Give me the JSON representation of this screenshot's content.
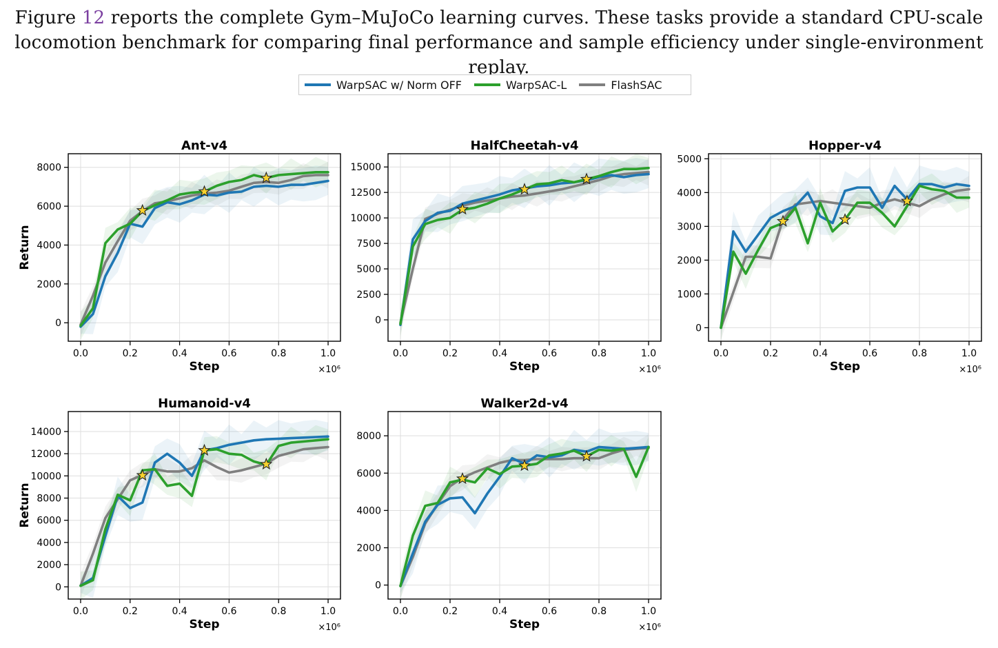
{
  "caption": {
    "line1_pre": "Figure ",
    "line1_ref": "12",
    "line1_post": " reports the complete Gym–MuJoCo learning curves. These tasks provide a standard CPU-scale",
    "line2": "locomotion benchmark for comparing final performance and sample efficiency under single-environment replay."
  },
  "legend": [
    {
      "name": "WarpSAC w/ Norm OFF",
      "color": "#1f77b4"
    },
    {
      "name": "WarpSAC-L",
      "color": "#2ca02c"
    },
    {
      "name": "FlashSAC",
      "color": "#7f7f7f"
    }
  ],
  "chart_data": [
    {
      "type": "line",
      "title": "Ant-v4",
      "xlabel": "Step",
      "ylabel": "Return",
      "x_multiplier": "×10⁶",
      "xlim": [
        -0.05,
        1.05
      ],
      "ylim": [
        -950,
        8700
      ],
      "xticks": [
        "0.0",
        "0.2",
        "0.4",
        "0.6",
        "0.8",
        "1.0"
      ],
      "yticks": [
        "0",
        "2000",
        "4000",
        "6000",
        "8000"
      ],
      "grid": true,
      "x": [
        0,
        0.05,
        0.1,
        0.15,
        0.2,
        0.25,
        0.3,
        0.35,
        0.4,
        0.45,
        0.5,
        0.55,
        0.6,
        0.65,
        0.7,
        0.75,
        0.8,
        0.85,
        0.9,
        0.95,
        1.0
      ],
      "series": [
        {
          "name": "WarpSAC w/ Norm OFF",
          "color": "#1f77b4",
          "values": [
            -200,
            450,
            2400,
            3600,
            5100,
            4950,
            5900,
            6200,
            6100,
            6300,
            6600,
            6550,
            6700,
            6750,
            7000,
            7050,
            7000,
            7100,
            7100,
            7200,
            7300
          ]
        },
        {
          "name": "WarpSAC-L",
          "color": "#2ca02c",
          "values": [
            -150,
            750,
            4100,
            4800,
            5100,
            5750,
            6050,
            6300,
            6600,
            6700,
            6750,
            7050,
            7250,
            7350,
            7600,
            7450,
            7600,
            7650,
            7700,
            7750,
            7750
          ]
        },
        {
          "name": "FlashSAC",
          "color": "#7f7f7f",
          "values": [
            -100,
            1400,
            3100,
            4200,
            5250,
            5750,
            6150,
            6250,
            6400,
            6550,
            6650,
            6700,
            6800,
            7000,
            7200,
            7250,
            7200,
            7350,
            7550,
            7600,
            7600
          ]
        }
      ],
      "stars": [
        {
          "x": 0.25,
          "y": 5780
        },
        {
          "x": 0.5,
          "y": 6750
        },
        {
          "x": 0.75,
          "y": 7450
        }
      ]
    },
    {
      "type": "line",
      "title": "HalfCheetah-v4",
      "xlabel": "Step",
      "ylabel": "",
      "x_multiplier": "×10⁶",
      "xlim": [
        -0.05,
        1.05
      ],
      "ylim": [
        -2100,
        16300
      ],
      "xticks": [
        "0.0",
        "0.2",
        "0.4",
        "0.6",
        "0.8",
        "1.0"
      ],
      "yticks": [
        "0",
        "2500",
        "5000",
        "7500",
        "10000",
        "12500",
        "15000"
      ],
      "grid": true,
      "x": [
        0,
        0.05,
        0.1,
        0.15,
        0.2,
        0.25,
        0.3,
        0.35,
        0.4,
        0.45,
        0.5,
        0.55,
        0.6,
        0.65,
        0.7,
        0.75,
        0.8,
        0.85,
        0.9,
        0.95,
        1.0
      ],
      "series": [
        {
          "name": "WarpSAC w/ Norm OFF",
          "color": "#1f77b4",
          "values": [
            -500,
            7900,
            9700,
            10500,
            10700,
            11400,
            11700,
            12000,
            12300,
            12700,
            12900,
            13100,
            13200,
            13400,
            13500,
            13700,
            14000,
            14200,
            14000,
            14200,
            14300
          ]
        },
        {
          "name": "WarpSAC-L",
          "color": "#2ca02c",
          "values": [
            -400,
            7200,
            9400,
            9800,
            10000,
            10800,
            11000,
            11400,
            11900,
            12300,
            12800,
            13300,
            13400,
            13700,
            13500,
            13800,
            14100,
            14500,
            14800,
            14800,
            14900
          ]
        },
        {
          "name": "FlashSAC",
          "color": "#7f7f7f",
          "values": [
            -300,
            5000,
            9900,
            10400,
            10800,
            11200,
            11500,
            11700,
            11900,
            12100,
            12200,
            12400,
            12600,
            12800,
            13100,
            13400,
            13700,
            14100,
            14300,
            14400,
            14500
          ]
        }
      ],
      "stars": [
        {
          "x": 0.25,
          "y": 10850
        },
        {
          "x": 0.5,
          "y": 12800
        },
        {
          "x": 0.75,
          "y": 13800
        }
      ]
    },
    {
      "type": "line",
      "title": "Hopper-v4",
      "xlabel": "Step",
      "ylabel": "",
      "x_multiplier": "×10⁶",
      "xlim": [
        -0.05,
        1.05
      ],
      "ylim": [
        -400,
        5150
      ],
      "xticks": [
        "0.0",
        "0.2",
        "0.4",
        "0.6",
        "0.8",
        "1.0"
      ],
      "yticks": [
        "0",
        "1000",
        "2000",
        "3000",
        "4000",
        "5000"
      ],
      "grid": true,
      "x": [
        0,
        0.05,
        0.1,
        0.15,
        0.2,
        0.25,
        0.3,
        0.35,
        0.4,
        0.45,
        0.5,
        0.55,
        0.6,
        0.65,
        0.7,
        0.75,
        0.8,
        0.85,
        0.9,
        0.95,
        1.0
      ],
      "series": [
        {
          "name": "WarpSAC w/ Norm OFF",
          "color": "#1f77b4",
          "values": [
            0,
            2850,
            2250,
            2750,
            3250,
            3450,
            3600,
            4000,
            3300,
            3100,
            4050,
            4150,
            4150,
            3550,
            4200,
            3800,
            4250,
            4250,
            4150,
            4250,
            4200
          ]
        },
        {
          "name": "WarpSAC-L",
          "color": "#2ca02c",
          "values": [
            0,
            2250,
            1600,
            2300,
            2950,
            3100,
            3550,
            2500,
            3700,
            2850,
            3200,
            3700,
            3700,
            3400,
            3000,
            3600,
            4200,
            4100,
            4050,
            3850,
            3850
          ]
        },
        {
          "name": "FlashSAC",
          "color": "#7f7f7f",
          "values": [
            0,
            1050,
            2100,
            2100,
            2050,
            3200,
            3650,
            3700,
            3750,
            3700,
            3650,
            3600,
            3550,
            3700,
            3800,
            3700,
            3600,
            3800,
            3950,
            4050,
            4100
          ]
        }
      ],
      "stars": [
        {
          "x": 0.25,
          "y": 3150
        },
        {
          "x": 0.5,
          "y": 3200
        },
        {
          "x": 0.75,
          "y": 3750
        }
      ]
    },
    {
      "type": "line",
      "title": "Humanoid-v4",
      "xlabel": "Step",
      "ylabel": "Return",
      "x_multiplier": "×10⁶",
      "xlim": [
        -0.05,
        1.05
      ],
      "ylim": [
        -1100,
        15800
      ],
      "xticks": [
        "0.0",
        "0.2",
        "0.4",
        "0.6",
        "0.8",
        "1.0"
      ],
      "yticks": [
        "0",
        "2000",
        "4000",
        "6000",
        "8000",
        "10000",
        "12000",
        "14000"
      ],
      "grid": true,
      "x": [
        0,
        0.05,
        0.1,
        0.15,
        0.2,
        0.25,
        0.3,
        0.35,
        0.4,
        0.45,
        0.5,
        0.55,
        0.6,
        0.65,
        0.7,
        0.75,
        0.8,
        0.85,
        0.9,
        0.95,
        1.0
      ],
      "series": [
        {
          "name": "WarpSAC w/ Norm OFF",
          "color": "#1f77b4",
          "values": [
            100,
            800,
            4600,
            8200,
            7100,
            7600,
            11200,
            12000,
            11200,
            10000,
            12300,
            12500,
            12800,
            13000,
            13200,
            13300,
            13350,
            13400,
            13450,
            13500,
            13550
          ]
        },
        {
          "name": "WarpSAC-L",
          "color": "#2ca02c",
          "values": [
            100,
            600,
            5200,
            8300,
            7800,
            10500,
            10600,
            9100,
            9300,
            8200,
            12300,
            12400,
            12000,
            11900,
            11300,
            11000,
            12700,
            13000,
            13100,
            13200,
            13300
          ]
        },
        {
          "name": "FlashSAC",
          "color": "#7f7f7f",
          "values": [
            100,
            3000,
            6200,
            7900,
            9600,
            10100,
            10600,
            10400,
            10400,
            10700,
            11400,
            10800,
            10300,
            10500,
            10800,
            11100,
            11800,
            12100,
            12400,
            12500,
            12600
          ]
        }
      ],
      "stars": [
        {
          "x": 0.25,
          "y": 10050
        },
        {
          "x": 0.5,
          "y": 12300
        },
        {
          "x": 0.75,
          "y": 11050
        }
      ]
    },
    {
      "type": "line",
      "title": "Walker2d-v4",
      "xlabel": "Step",
      "ylabel": "",
      "x_multiplier": "×10⁶",
      "xlim": [
        -0.05,
        1.05
      ],
      "ylim": [
        -750,
        9300
      ],
      "xticks": [
        "0.0",
        "0.2",
        "0.4",
        "0.6",
        "0.8",
        "1.0"
      ],
      "yticks": [
        "0",
        "2000",
        "4000",
        "6000",
        "8000"
      ],
      "grid": true,
      "x": [
        0,
        0.05,
        0.1,
        0.15,
        0.2,
        0.25,
        0.3,
        0.35,
        0.4,
        0.45,
        0.5,
        0.55,
        0.6,
        0.65,
        0.7,
        0.75,
        0.8,
        0.85,
        0.9,
        0.95,
        1.0
      ],
      "series": [
        {
          "name": "WarpSAC w/ Norm OFF",
          "color": "#1f77b4",
          "values": [
            -50,
            1700,
            3400,
            4300,
            4650,
            4700,
            3850,
            4900,
            5800,
            6800,
            6500,
            6950,
            6850,
            6950,
            7250,
            7150,
            7400,
            7350,
            7300,
            7350,
            7400
          ]
        },
        {
          "name": "WarpSAC-L",
          "color": "#2ca02c",
          "values": [
            -50,
            2650,
            4250,
            4400,
            5500,
            5650,
            5500,
            6250,
            5950,
            6350,
            6400,
            6500,
            6950,
            7050,
            7200,
            6900,
            7250,
            7200,
            7300,
            5800,
            7400
          ]
        },
        {
          "name": "FlashSAC",
          "color": "#7f7f7f",
          "values": [
            -50,
            1500,
            3300,
            4350,
            5300,
            5750,
            6050,
            6300,
            6550,
            6700,
            6700,
            6750,
            6750,
            6750,
            6800,
            6800,
            6800,
            7050,
            7250,
            7300,
            7350
          ]
        }
      ],
      "stars": [
        {
          "x": 0.25,
          "y": 5700
        },
        {
          "x": 0.5,
          "y": 6400
        },
        {
          "x": 0.75,
          "y": 6900
        }
      ]
    }
  ]
}
